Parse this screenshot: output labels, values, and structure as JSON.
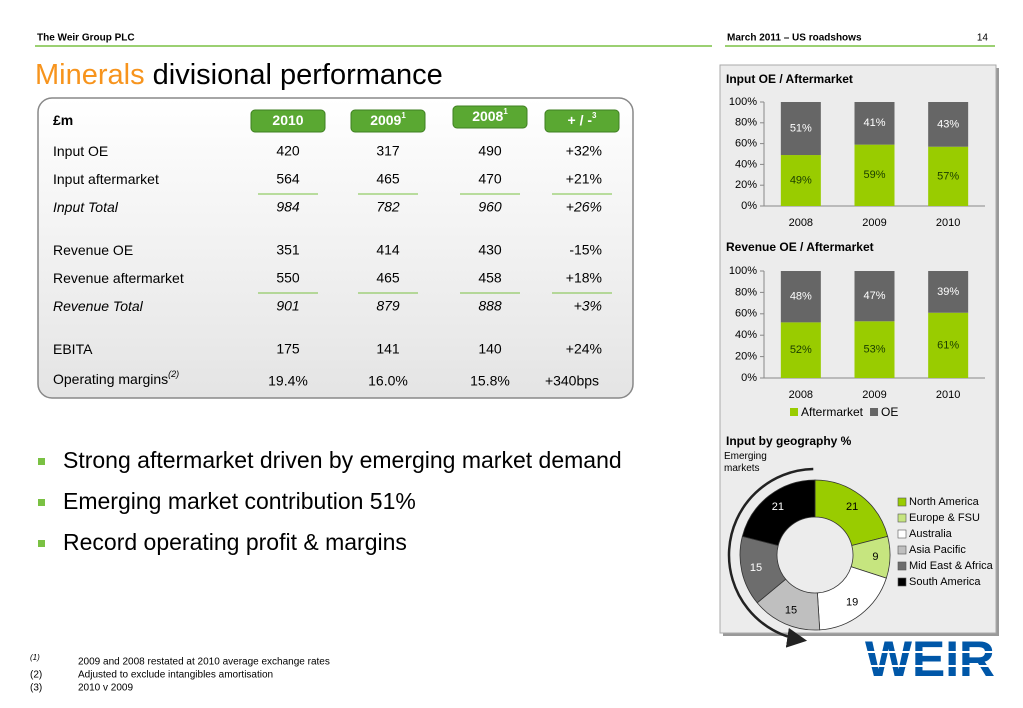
{
  "header": {
    "company": "The Weir Group PLC",
    "event": "March 2011 – US roadshows",
    "page": "14"
  },
  "title": {
    "highlight": "Minerals",
    "rest": "divisional performance"
  },
  "table": {
    "columns": [
      {
        "label": "£m"
      },
      {
        "label": "2010"
      },
      {
        "label": "2009",
        "sup": "1"
      },
      {
        "label": "2008",
        "sup": "1"
      },
      {
        "label": "+ / -",
        "sup": "3"
      }
    ],
    "groups": [
      {
        "rows": [
          {
            "label": "Input OE",
            "values": [
              "420",
              "317",
              "490",
              "+32%"
            ]
          },
          {
            "label": "Input aftermarket",
            "values": [
              "564",
              "465",
              "470",
              "+21%"
            ]
          },
          {
            "label": "Input Total",
            "values": [
              "984",
              "782",
              "960",
              "+26%"
            ],
            "italic": true
          }
        ]
      },
      {
        "rows": [
          {
            "label": "Revenue OE",
            "values": [
              "351",
              "414",
              "430",
              "-15%"
            ]
          },
          {
            "label": "Revenue aftermarket",
            "values": [
              "550",
              "465",
              "458",
              "+18%"
            ]
          },
          {
            "label": "Revenue Total",
            "values": [
              "901",
              "879",
              "888",
              "+3%"
            ],
            "italic": true
          }
        ]
      },
      {
        "rows": [
          {
            "label": "EBITA",
            "values": [
              "175",
              "141",
              "140",
              "+24%"
            ]
          },
          {
            "label": "Operating margins",
            "sup": "(2)",
            "values": [
              "19.4%",
              "16.0%",
              "15.8%",
              "+340bps"
            ]
          }
        ]
      }
    ]
  },
  "bullets": [
    "Strong aftermarket driven by emerging market demand",
    "Emerging market contribution 51%",
    "Record operating profit & margins"
  ],
  "charts": [
    {
      "type": "bar",
      "stacked": true,
      "title": "Input OE / Aftermarket",
      "categories": [
        "2008",
        "2009",
        "2010"
      ],
      "series": [
        {
          "name": "Aftermarket",
          "color": "#99cc00",
          "values": [
            49,
            59,
            57
          ],
          "value_labels": [
            "49%",
            "59%",
            "57%"
          ]
        },
        {
          "name": "OE",
          "color": "#666666",
          "values": [
            51,
            41,
            43
          ],
          "value_labels": [
            "51%",
            "41%",
            "43%"
          ]
        }
      ],
      "ylim": [
        0,
        100
      ],
      "yticks": [
        {
          "value": 0,
          "label": "0%"
        },
        {
          "value": 20,
          "label": "20%"
        },
        {
          "value": 40,
          "label": "40%"
        },
        {
          "value": 60,
          "label": "60%"
        },
        {
          "value": 80,
          "label": "80%"
        },
        {
          "value": 100,
          "label": "100%"
        }
      ]
    },
    {
      "type": "bar",
      "stacked": true,
      "title": "Revenue OE / Aftermarket",
      "categories": [
        "2008",
        "2009",
        "2010"
      ],
      "series": [
        {
          "name": "Aftermarket",
          "color": "#99cc00",
          "values": [
            52,
            53,
            61
          ],
          "value_labels": [
            "52%",
            "53%",
            "61%"
          ]
        },
        {
          "name": "OE",
          "color": "#666666",
          "values": [
            48,
            47,
            39
          ],
          "value_labels": [
            "48%",
            "47%",
            "39%"
          ]
        }
      ],
      "ylim": [
        0,
        100
      ],
      "yticks": [
        {
          "value": 0,
          "label": "0%"
        },
        {
          "value": 20,
          "label": "20%"
        },
        {
          "value": 40,
          "label": "40%"
        },
        {
          "value": 60,
          "label": "60%"
        },
        {
          "value": 80,
          "label": "80%"
        },
        {
          "value": 100,
          "label": "100%"
        }
      ],
      "legend": "bottom"
    },
    {
      "type": "pie",
      "donut": true,
      "title": "Input by geography %",
      "categories": [
        "North America",
        "Europe & FSU",
        "Australia",
        "Asia Pacific",
        "Mid East & Africa",
        "South America"
      ],
      "values": [
        21,
        9,
        19,
        15,
        15,
        21
      ],
      "colors": [
        "#99cc00",
        "#c6e57f",
        "#ffffff",
        "#bfbfbf",
        "#6d6d6d",
        "#000000"
      ],
      "annotation": "Emerging markets",
      "legend": "right"
    }
  ],
  "footnotes": [
    {
      "mark": "(1)",
      "text": "2009 and 2008 restated at 2010 average exchange rates"
    },
    {
      "mark": "(2)",
      "text": "Adjusted to exclude intangibles amortisation"
    },
    {
      "mark": "(3)",
      "text": "2010 v 2009"
    }
  ],
  "logo": "WEIR"
}
